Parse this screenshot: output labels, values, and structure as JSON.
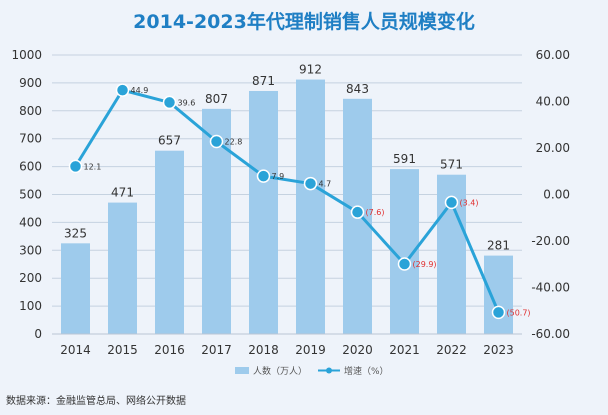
{
  "chart_data": {
    "type": "bar",
    "title": "2014-2023年代理制销售人员规模变化",
    "categories": [
      "2014",
      "2015",
      "2016",
      "2017",
      "2018",
      "2019",
      "2020",
      "2021",
      "2022",
      "2023"
    ],
    "series": [
      {
        "name": "人数（万人）",
        "type": "bar",
        "axis": "left",
        "values": [
          325,
          471,
          657,
          807,
          871,
          912,
          843,
          591,
          571,
          281
        ],
        "labels": [
          "325",
          "471",
          "657",
          "807",
          "871",
          "912",
          "843",
          "591",
          "571",
          "281"
        ]
      },
      {
        "name": "增速（%）",
        "type": "line",
        "axis": "right",
        "values": [
          12.1,
          44.9,
          39.6,
          22.8,
          7.9,
          4.7,
          -7.6,
          -29.9,
          -3.4,
          -50.7
        ],
        "labels": [
          "12.1",
          "44.9",
          "39.6",
          "22.8",
          "7.9",
          "4.7",
          "(7.6)",
          "(29.9)",
          "(3.4)",
          "(50.7)"
        ]
      }
    ],
    "yleft": {
      "min": 0,
      "max": 1000,
      "ticks": [
        "0",
        "100",
        "200",
        "300",
        "400",
        "500",
        "600",
        "700",
        "800",
        "900",
        "1000"
      ]
    },
    "yright": {
      "min": -60,
      "max": 60,
      "ticks": [
        "-60.00",
        "-40.00",
        "-20.00",
        "0.00",
        "20.00",
        "40.00",
        "60.00"
      ]
    },
    "legend_position": "bottom",
    "grid": true,
    "source": "数据来源：金融监管总局、网络公开数据",
    "colors": {
      "bar": "#9ecbec",
      "line": "#2aa3d8",
      "title": "#1f7fc4",
      "negative_label": "#e03030",
      "grid": "#c5d2e0"
    }
  }
}
